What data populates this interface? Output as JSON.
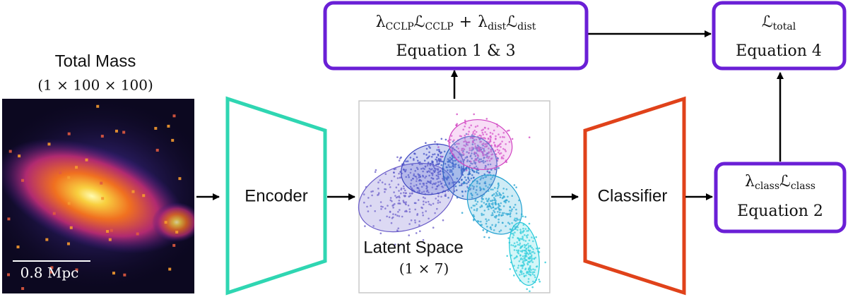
{
  "total_mass": {
    "title": "Total Mass",
    "shape": "(1 × 100 × 100)",
    "scale_bar": "0.8 Mpc"
  },
  "encoder": {
    "label": "Encoder"
  },
  "latent": {
    "label": "Latent Space",
    "shape": "(1 × 7)"
  },
  "classifier": {
    "label": "Classifier"
  },
  "loss_boxes": [
    {
      "formula": [
        {
          "sym": "λ",
          "sub": "CCLP"
        },
        {
          "sym": "ℒ",
          "sub": "CCLP"
        },
        {
          "op": "+"
        },
        {
          "sym": "λ",
          "sub": "dist"
        },
        {
          "sym": "ℒ",
          "sub": "dist"
        }
      ],
      "equation": "Equation 1 & 3"
    },
    {
      "formula": [
        {
          "sym": "ℒ",
          "sub": "total"
        }
      ],
      "equation": "Equation 4"
    },
    {
      "formula": [
        {
          "sym": "λ",
          "sub": "class"
        },
        {
          "sym": "ℒ",
          "sub": "class"
        }
      ],
      "equation": "Equation 2"
    }
  ]
}
